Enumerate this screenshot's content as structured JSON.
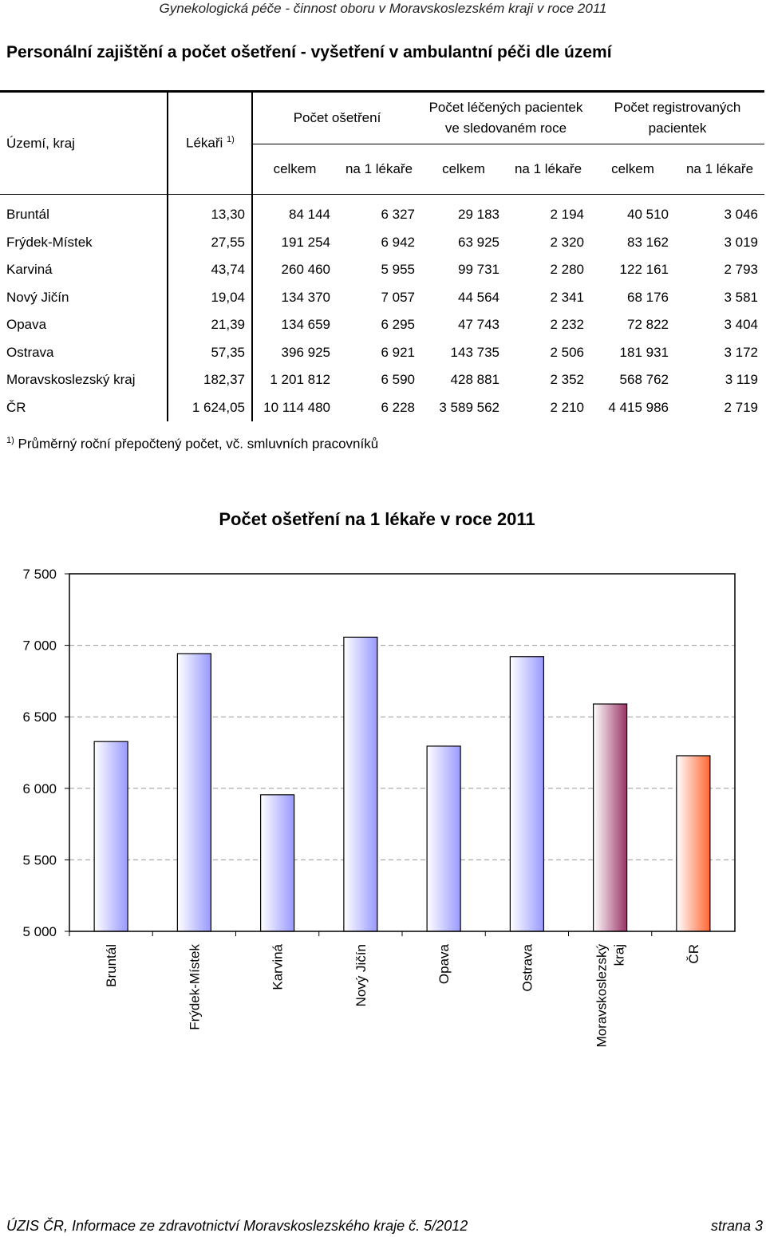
{
  "header": {
    "running_title": "Gynekologická péče - činnost oboru v Moravskoslezském kraji v roce 2011"
  },
  "title": "Personální zajištění a počet ošetření - vyšetření v ambulantní péči dle území",
  "table": {
    "col_territory": "Území, kraj",
    "col_doctors": "Lékaři",
    "col_doctors_sup": "1)",
    "group_treatments": "Počet ošetření",
    "group_patients_treated_1": "Počet léčených pacientek",
    "group_patients_treated_2": "ve sledovaném roce",
    "group_registered_1": "Počet registrovaných",
    "group_registered_2": "pacientek",
    "sub_total": "celkem",
    "sub_per_doctor": "na 1 lékaře",
    "rows": [
      [
        "Bruntál",
        "13,30",
        "84 144",
        "6 327",
        "29 183",
        "2 194",
        "40 510",
        "3 046"
      ],
      [
        "Frýdek-Místek",
        "27,55",
        "191 254",
        "6 942",
        "63 925",
        "2 320",
        "83 162",
        "3 019"
      ],
      [
        "Karviná",
        "43,74",
        "260 460",
        "5 955",
        "99 731",
        "2 280",
        "122 161",
        "2 793"
      ],
      [
        "Nový Jičín",
        "19,04",
        "134 370",
        "7 057",
        "44 564",
        "2 341",
        "68 176",
        "3 581"
      ],
      [
        "Opava",
        "21,39",
        "134 659",
        "6 295",
        "47 743",
        "2 232",
        "72 822",
        "3 404"
      ],
      [
        "Ostrava",
        "57,35",
        "396 925",
        "6 921",
        "143 735",
        "2 506",
        "181 931",
        "3 172"
      ],
      [
        "Moravskoslezský kraj",
        "182,37",
        "1 201 812",
        "6 590",
        "428 881",
        "2 352",
        "568 762",
        "3 119"
      ],
      [
        "ČR",
        "1 624,05",
        "10 114 480",
        "6 228",
        "3 589 562",
        "2 210",
        "4 415 986",
        "2 719"
      ]
    ]
  },
  "footnote": {
    "mark": "1)",
    "text": "Průměrný roční přepočtený počet, vč. smluvních pracovníků"
  },
  "chart_data": {
    "type": "bar",
    "title": "Počet ošetření na 1 lékaře v roce 2011",
    "xlabel": "",
    "ylabel": "",
    "categories": [
      "Bruntál",
      "Frýdek-Místek",
      "Karviná",
      "Nový Jičín",
      "Opava",
      "Ostrava",
      "Moravskoslezský kraj",
      "ČR"
    ],
    "category_lines": [
      [
        "Bruntál"
      ],
      [
        "Frýdek-Místek"
      ],
      [
        "Karviná"
      ],
      [
        "Nový Jičín"
      ],
      [
        "Opava"
      ],
      [
        "Ostrava"
      ],
      [
        "Moravskoslezský",
        "kraj"
      ],
      [
        "ČR"
      ]
    ],
    "values": [
      6327,
      6942,
      5955,
      7057,
      6295,
      6921,
      6590,
      6228
    ],
    "ylim": [
      5000,
      7500
    ],
    "yticks": [
      5000,
      5500,
      6000,
      6500,
      7000,
      7500
    ],
    "ytick_labels": [
      "5 000",
      "5 500",
      "6 000",
      "6 500",
      "7 000",
      "7 500"
    ],
    "grid": true,
    "legend": "none",
    "bar_styles": [
      "district",
      "district",
      "district",
      "district",
      "district",
      "district",
      "region",
      "country"
    ],
    "colors": {
      "district": "#9999ff",
      "region": "#993366",
      "country": "#ff6633"
    }
  },
  "footer": {
    "left": "ÚZIS ČR, Informace ze zdravotnictví Moravskoslezského kraje č. 5/2012",
    "right": "strana 3"
  }
}
